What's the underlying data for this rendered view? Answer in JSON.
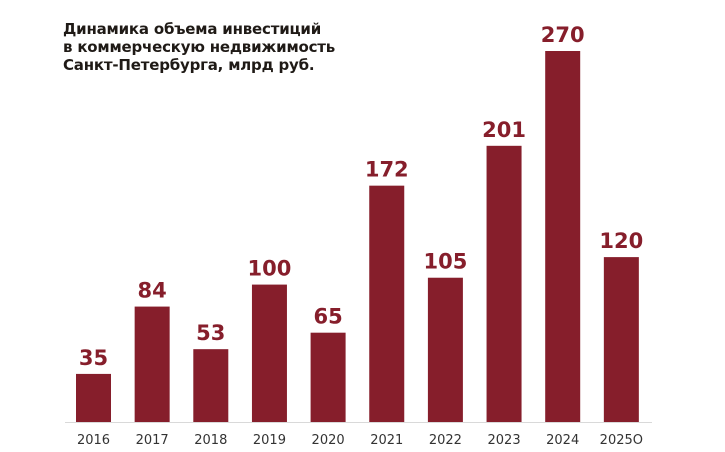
{
  "chart_data": {
    "type": "bar",
    "title": "Динамика объема инвестиций\nв коммерческую недвижимость\nСанкт-Петербурга, млрд руб.",
    "categories": [
      "2016",
      "2017",
      "2018",
      "2019",
      "2020",
      "2021",
      "2022",
      "2023",
      "2024",
      "2025О"
    ],
    "values": [
      35,
      84,
      53,
      100,
      65,
      172,
      105,
      201,
      270,
      120
    ],
    "xlabel": "",
    "ylabel": "",
    "ylim": [
      0,
      270
    ],
    "grid": false,
    "bar_color": "#861e2b",
    "label_color": "#861e2b"
  }
}
